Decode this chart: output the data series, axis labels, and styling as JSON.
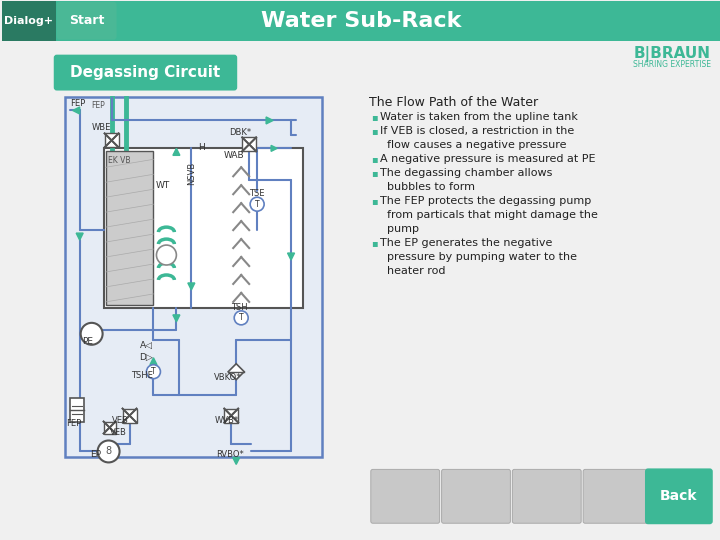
{
  "title": "Water Sub-Rack",
  "bg_color": "#f0f0f0",
  "header_color": "#3db896",
  "dialog_bg": "#2a7a62",
  "start_bg": "#4ab896",
  "header_text_color": "#ffffff",
  "dialog_label": "Dialog+",
  "start_label": "Start",
  "braun_top": "B|BRAUN",
  "braun_bottom": "SHARING EXPERTISE",
  "braun_color": "#3db896",
  "section_label": "Degassing Circuit",
  "section_bg": "#3db896",
  "section_text_color": "#ffffff",
  "flow_title": "The Flow Path of the Water",
  "bullets": [
    [
      "Water is taken from the upline tank"
    ],
    [
      "If VEB is closed, a restriction in the",
      "  flow causes a negative pressure"
    ],
    [
      "A negative pressure is measured at PE"
    ],
    [
      "The degassing chamber allows",
      "  bubbles to form"
    ],
    [
      "The FEP protects the degassing pump",
      "  from particals that might damage the",
      "  pump"
    ],
    [
      "The EP generates the negative",
      "  pressure by pumping water to the",
      "  heater rod"
    ]
  ],
  "bullet_char": "▪",
  "back_label": "Back",
  "back_bg": "#3db896",
  "back_text_color": "#ffffff",
  "diagram_line_color": "#6080c0",
  "diagram_green_color": "#3db896",
  "diagram_dark_color": "#555555"
}
